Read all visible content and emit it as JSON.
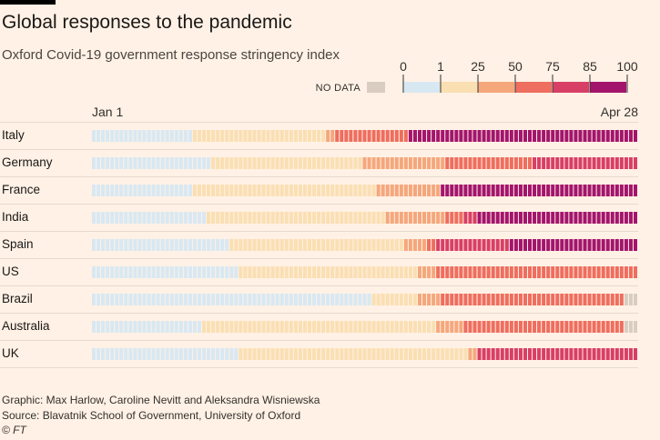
{
  "header": {
    "title": "Global responses to the pandemic",
    "subtitle": "Oxford Covid-19 government response stringency index"
  },
  "footer": {
    "graphic": "Graphic: Max Harlow, Caroline Nevitt and Aleksandra Wisniewska",
    "source": "Source: Blavatnik School of Government, University of Oxford",
    "copyright": "© FT"
  },
  "chart_data": {
    "type": "heatmap",
    "x_start_label": "Jan 1",
    "x_end_label": "Apr 28",
    "days": 119,
    "legend": {
      "no_data_label": "NO DATA",
      "no_data_color": "#d9cdc1",
      "thresholds": [
        "0",
        "1",
        "25",
        "50",
        "75",
        "85",
        "100"
      ],
      "bands": [
        {
          "from": 0,
          "to": 1,
          "color": "#d8e8f2"
        },
        {
          "from": 1,
          "to": 25,
          "color": "#fadfb3"
        },
        {
          "from": 25,
          "to": 50,
          "color": "#f5a77c"
        },
        {
          "from": 50,
          "to": 75,
          "color": "#ee6e5f"
        },
        {
          "from": 75,
          "to": 85,
          "color": "#d83f66"
        },
        {
          "from": 85,
          "to": 100,
          "color": "#a3156d"
        }
      ]
    },
    "band_values": [
      0,
      12,
      38,
      62,
      80,
      92
    ],
    "rows": [
      {
        "country": "Italy",
        "runs": [
          [
            0,
            22
          ],
          [
            1,
            29
          ],
          [
            2,
            2
          ],
          [
            3,
            16
          ],
          [
            5,
            50
          ]
        ]
      },
      {
        "country": "Germany",
        "runs": [
          [
            0,
            26
          ],
          [
            1,
            33
          ],
          [
            2,
            18
          ],
          [
            3,
            19
          ],
          [
            4,
            23
          ]
        ]
      },
      {
        "country": "France",
        "runs": [
          [
            0,
            22
          ],
          [
            1,
            40
          ],
          [
            2,
            14
          ],
          [
            5,
            43
          ]
        ]
      },
      {
        "country": "India",
        "runs": [
          [
            0,
            25
          ],
          [
            1,
            39
          ],
          [
            2,
            13
          ],
          [
            3,
            4
          ],
          [
            4,
            3
          ],
          [
            5,
            35
          ]
        ]
      },
      {
        "country": "Spain",
        "runs": [
          [
            0,
            30
          ],
          [
            1,
            38
          ],
          [
            2,
            5
          ],
          [
            3,
            2
          ],
          [
            4,
            16
          ],
          [
            5,
            28
          ]
        ]
      },
      {
        "country": "US",
        "runs": [
          [
            0,
            32
          ],
          [
            1,
            39
          ],
          [
            2,
            4
          ],
          [
            3,
            44
          ]
        ]
      },
      {
        "country": "Brazil",
        "runs": [
          [
            0,
            61
          ],
          [
            1,
            10
          ],
          [
            2,
            5
          ],
          [
            3,
            40
          ],
          [
            -1,
            3
          ]
        ]
      },
      {
        "country": "Australia",
        "runs": [
          [
            0,
            24
          ],
          [
            1,
            51
          ],
          [
            2,
            6
          ],
          [
            3,
            35
          ],
          [
            -1,
            3
          ]
        ]
      },
      {
        "country": "UK",
        "runs": [
          [
            0,
            32
          ],
          [
            1,
            50
          ],
          [
            2,
            2
          ],
          [
            4,
            35
          ]
        ]
      }
    ]
  }
}
